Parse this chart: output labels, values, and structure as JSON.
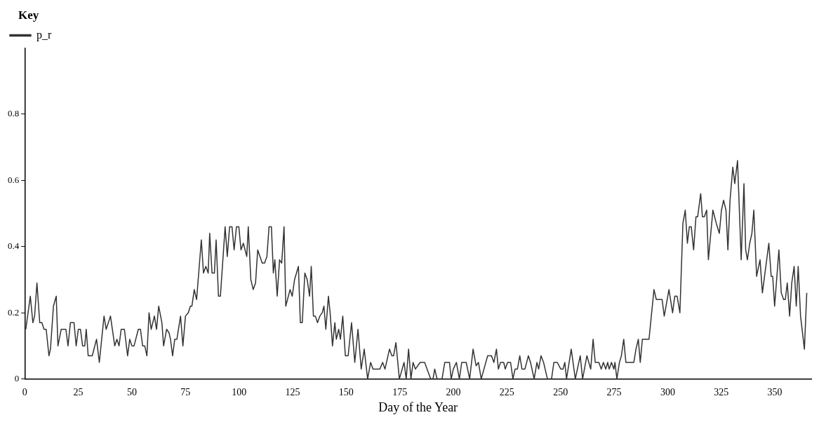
{
  "chart_data": {
    "type": "line",
    "xlabel": "Day of the Year",
    "legend_title": "Key",
    "legend": "top left",
    "marker": "none",
    "line_style": "solid",
    "xlim": [
      0,
      367
    ],
    "xticks": [
      0,
      25,
      50,
      75,
      100,
      125,
      150,
      175,
      200,
      225,
      250,
      275,
      300,
      325,
      350
    ],
    "ylim": [
      0,
      1.0
    ],
    "yticks": [
      0,
      0.2,
      0.4,
      0.6,
      0.8
    ],
    "series": [
      {
        "name": "p_r",
        "color": "#333333",
        "x": [
          0.5,
          2.6,
          3.8,
          4.6,
          5.7,
          7,
          8,
          9,
          10,
          11.3,
          12,
          13.4,
          14.7,
          15.5,
          17,
          19.2,
          20.2,
          21.3,
          23,
          24,
          25,
          26,
          27,
          28,
          28.7,
          29.6,
          31.5,
          33.5,
          34.8,
          37,
          38,
          40,
          42,
          43,
          44,
          45,
          46.5,
          48,
          49,
          50,
          51,
          53,
          54,
          55,
          56,
          57,
          58,
          59,
          60.5,
          61.5,
          62.5,
          64,
          64.8,
          66.2,
          67.3,
          68,
          69,
          70,
          71,
          72.7,
          73.8,
          75,
          76.3,
          77.3,
          78,
          79.1,
          80.2,
          82.4,
          83.4,
          84.5,
          85.6,
          86.3,
          87.4,
          88.5,
          89.3,
          90.4,
          91.3,
          93.5,
          94.5,
          95.6,
          96.7,
          97.7,
          98.8,
          99.9,
          100.9,
          102,
          103.6,
          104.3,
          105.5,
          106.6,
          107.7,
          108.7,
          110.8,
          111.9,
          113,
          114,
          115.1,
          116,
          116.7,
          117.8,
          118.9,
          119.9,
          121,
          121.8,
          123.8,
          124.8,
          125.9,
          127.7,
          128.6,
          129.5,
          130.7,
          131.8,
          132.9,
          133.7,
          134.7,
          135.6,
          136.6,
          137.7,
          138.8,
          139.6,
          140.5,
          141.7,
          142.5,
          143.6,
          144.7,
          145.4,
          146.5,
          147.3,
          148.4,
          149.6,
          150.9,
          152.5,
          154,
          155.5,
          157,
          158.4,
          160,
          161.4,
          162.5,
          165.7,
          167,
          168.1,
          170.2,
          171.3,
          172.1,
          173.2,
          174.8,
          177,
          178,
          179.1,
          180.2,
          181.2,
          182.3,
          184.5,
          186.6,
          189.4,
          190.5,
          191.3,
          192.4,
          194.7,
          196,
          198.2,
          199,
          200,
          201.4,
          202.8,
          203.9,
          206,
          207.6,
          209.2,
          210.6,
          211.7,
          213,
          216,
          217.8,
          218.9,
          220.1,
          221,
          222,
          223.5,
          224.2,
          225.3,
          226.7,
          227.8,
          228.8,
          229.9,
          231,
          232,
          233.4,
          235,
          236,
          237.7,
          239,
          239.8,
          240.9,
          242.1,
          243.9,
          245.8,
          246.9,
          248.5,
          250.1,
          251.2,
          252,
          252.8,
          255,
          256.9,
          259.2,
          260.3,
          262.3,
          264.1,
          265.2,
          266.2,
          267.9,
          269,
          270,
          271.1,
          272,
          272.7,
          273.8,
          274.9,
          275.4,
          276.3,
          277.5,
          278.4,
          279.5,
          280.5,
          284.2,
          285.2,
          286.3,
          287.2,
          288.2,
          291.3,
          293.6,
          294.7,
          297.4,
          298.4,
          300.6,
          302.3,
          303.3,
          304.4,
          305.7,
          307.1,
          308.2,
          309.2,
          310.1,
          311,
          312.1,
          313.2,
          314,
          315.4,
          316.2,
          317.1,
          318.2,
          319,
          321.1,
          322.7,
          324.1,
          325.1,
          326.1,
          327.2,
          328.1,
          329.1,
          330.4,
          331.3,
          332.6,
          334.3,
          335.6,
          336.4,
          337.2,
          338.3,
          339.3,
          340.2,
          341.5,
          343.1,
          344.2,
          347.2,
          348.3,
          349,
          349.9,
          351.9,
          353,
          354.1,
          354.9,
          355.8,
          356.9,
          357.9,
          359,
          360,
          360.9,
          362,
          363.8,
          364.9
        ],
        "values": [
          0.15,
          0.25,
          0.17,
          0.19,
          0.29,
          0.17,
          0.17,
          0.15,
          0.15,
          0.07,
          0.09,
          0.22,
          0.25,
          0.1,
          0.15,
          0.15,
          0.1,
          0.17,
          0.17,
          0.1,
          0.15,
          0.15,
          0.1,
          0.1,
          0.15,
          0.07,
          0.07,
          0.12,
          0.05,
          0.19,
          0.15,
          0.19,
          0.1,
          0.12,
          0.1,
          0.15,
          0.15,
          0.07,
          0.12,
          0.1,
          0.1,
          0.15,
          0.15,
          0.1,
          0.1,
          0.07,
          0.2,
          0.15,
          0.19,
          0.15,
          0.22,
          0.17,
          0.1,
          0.15,
          0.14,
          0.12,
          0.07,
          0.12,
          0.12,
          0.19,
          0.1,
          0.19,
          0.2,
          0.22,
          0.22,
          0.27,
          0.24,
          0.42,
          0.32,
          0.34,
          0.32,
          0.44,
          0.32,
          0.32,
          0.42,
          0.25,
          0.25,
          0.46,
          0.37,
          0.46,
          0.46,
          0.39,
          0.46,
          0.46,
          0.39,
          0.41,
          0.37,
          0.46,
          0.3,
          0.27,
          0.29,
          0.39,
          0.35,
          0.35,
          0.37,
          0.46,
          0.46,
          0.32,
          0.36,
          0.25,
          0.36,
          0.35,
          0.46,
          0.22,
          0.27,
          0.25,
          0.3,
          0.34,
          0.17,
          0.17,
          0.32,
          0.3,
          0.25,
          0.34,
          0.19,
          0.19,
          0.17,
          0.19,
          0.2,
          0.22,
          0.15,
          0.25,
          0.2,
          0.1,
          0.17,
          0.12,
          0.15,
          0.12,
          0.19,
          0.07,
          0.07,
          0.17,
          0.05,
          0.15,
          0.03,
          0.09,
          0,
          0.05,
          0.03,
          0.03,
          0.05,
          0.03,
          0.09,
          0.07,
          0.07,
          0.11,
          0,
          0.05,
          0,
          0.09,
          0,
          0.05,
          0.03,
          0.05,
          0.05,
          0,
          0,
          0.03,
          0,
          0,
          0.05,
          0.05,
          0,
          0.03,
          0.05,
          0,
          0.05,
          0.05,
          0,
          0.09,
          0.04,
          0.05,
          0,
          0.07,
          0.07,
          0.05,
          0.09,
          0.03,
          0.05,
          0.05,
          0.03,
          0.05,
          0.05,
          0,
          0.03,
          0.03,
          0.07,
          0.03,
          0.03,
          0.07,
          0.05,
          0,
          0.05,
          0.03,
          0.07,
          0.05,
          0,
          0,
          0.05,
          0.05,
          0.03,
          0.03,
          0.05,
          0,
          0.09,
          0,
          0.07,
          0,
          0.07,
          0.03,
          0.12,
          0.05,
          0.05,
          0.03,
          0.05,
          0.03,
          0.05,
          0.03,
          0.05,
          0.03,
          0.05,
          0,
          0.05,
          0.07,
          0.12,
          0.05,
          0.05,
          0.09,
          0.12,
          0.05,
          0.12,
          0.12,
          0.27,
          0.24,
          0.24,
          0.19,
          0.27,
          0.2,
          0.25,
          0.25,
          0.2,
          0.47,
          0.51,
          0.41,
          0.46,
          0.46,
          0.39,
          0.49,
          0.49,
          0.56,
          0.49,
          0.49,
          0.51,
          0.36,
          0.51,
          0.47,
          0.44,
          0.51,
          0.54,
          0.51,
          0.39,
          0.54,
          0.64,
          0.59,
          0.66,
          0.36,
          0.59,
          0.39,
          0.36,
          0.41,
          0.44,
          0.51,
          0.31,
          0.36,
          0.26,
          0.41,
          0.31,
          0.31,
          0.22,
          0.39,
          0.26,
          0.24,
          0.24,
          0.29,
          0.19,
          0.29,
          0.34,
          0.22,
          0.34,
          0.19,
          0.09,
          0.26
        ]
      }
    ]
  }
}
